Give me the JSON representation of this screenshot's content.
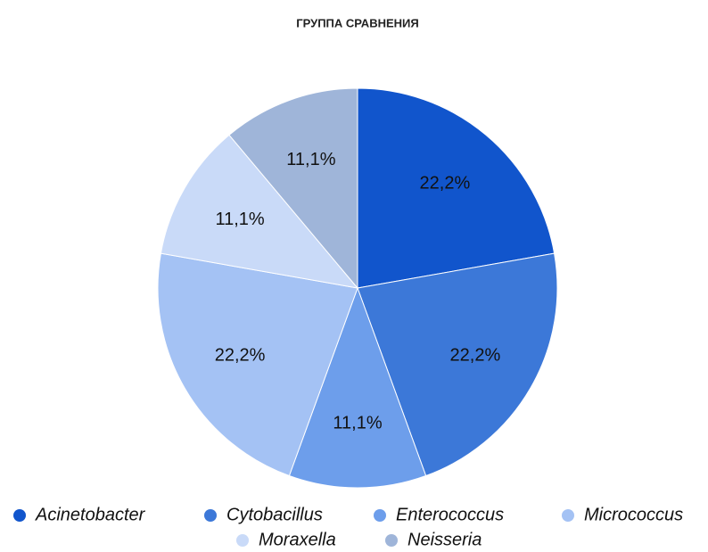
{
  "chart_data": {
    "type": "pie",
    "title": "ГРУППА СРАВНЕНИЯ",
    "categories": [
      "Acinetobacter",
      "Cytobacillus",
      "Enterococcus",
      "Micrococcus",
      "Moraxella",
      "Neisseria"
    ],
    "values": [
      22.2,
      22.2,
      11.1,
      22.2,
      11.1,
      11.1
    ],
    "value_labels": [
      "22,2%",
      "22,2%",
      "11,1%",
      "22,2%",
      "11,1%",
      "11,1%"
    ],
    "colors": [
      "#1155cc",
      "#3c78d8",
      "#6d9eeb",
      "#a4c2f4",
      "#c9daf8",
      "#9fb5d9"
    ],
    "legend": "bottom"
  }
}
